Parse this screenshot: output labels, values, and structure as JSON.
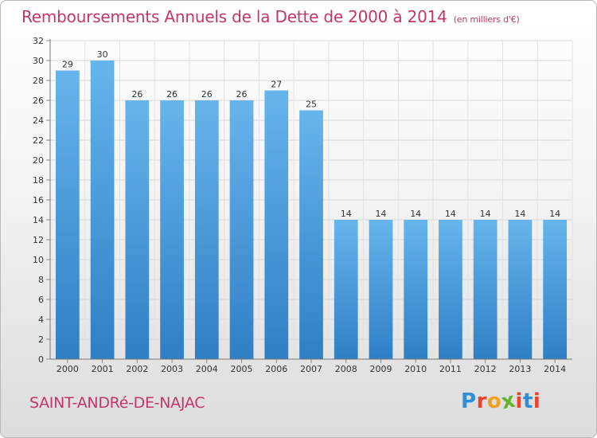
{
  "header": {
    "title": "Remboursements Annuels de la Dette de 2000 à 2014",
    "unit": "(en milliers d'€)"
  },
  "footer": {
    "commune": "SAINT-ANDRé-DE-NAJAC",
    "logo_letters": [
      "P",
      "r",
      "o",
      "x",
      "i",
      "t",
      "i"
    ],
    "logo_colors": [
      "#2e8fd8",
      "#e8442e",
      "#f0a020",
      "#63b52e",
      "#e8442e",
      "#2e8fd8",
      "#e8442e"
    ]
  },
  "colors": {
    "accent": "#c2366b",
    "bar_top": "#66b5ec",
    "bar_bottom": "#2f7fc6"
  },
  "chart_data": {
    "type": "bar",
    "title": "Remboursements Annuels de la Dette de 2000 à 2014",
    "categories": [
      "2000",
      "2001",
      "2002",
      "2003",
      "2004",
      "2005",
      "2006",
      "2007",
      "2008",
      "2009",
      "2010",
      "2011",
      "2012",
      "2013",
      "2014"
    ],
    "values": [
      29,
      30,
      26,
      26,
      26,
      26,
      27,
      25,
      14,
      14,
      14,
      14,
      14,
      14,
      14
    ],
    "ylim": [
      0,
      32
    ],
    "yticks": [
      0,
      2,
      4,
      6,
      8,
      10,
      12,
      14,
      16,
      18,
      20,
      22,
      24,
      26,
      28,
      30,
      32
    ],
    "grid": true,
    "xlabel": "",
    "ylabel": ""
  }
}
